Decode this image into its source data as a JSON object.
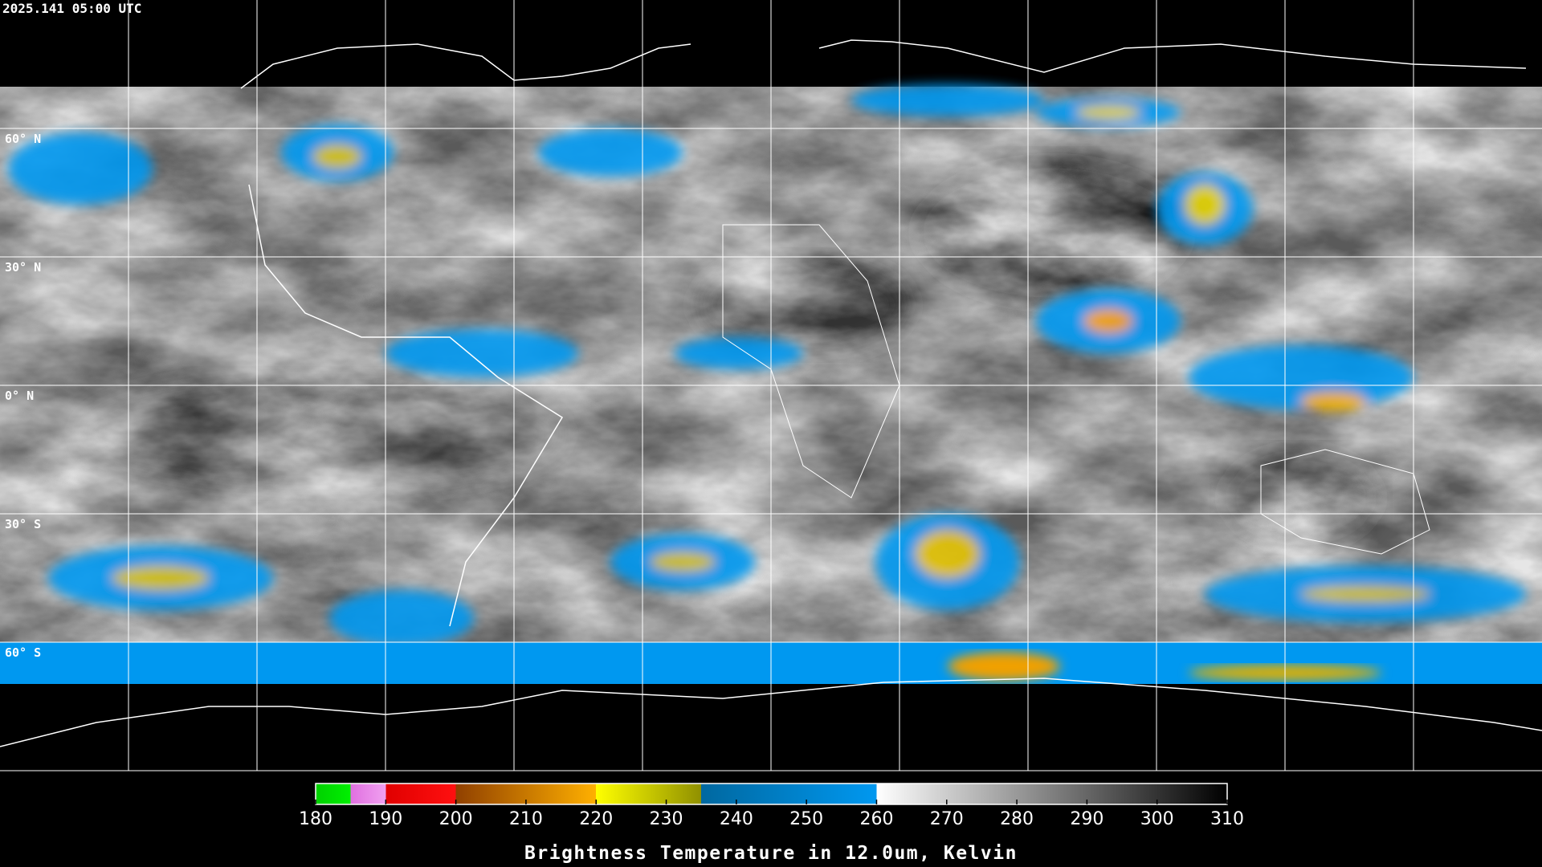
{
  "header": {
    "timestamp": "2025.141 05:00 UTC"
  },
  "map": {
    "latitude_labels": [
      "60° N",
      "30° N",
      "0° N",
      "30° S",
      "60° S"
    ]
  },
  "colorbar": {
    "title": "Brightness Temperature in 12.0um, Kelvin",
    "lim": [
      180,
      310
    ],
    "ticks": [
      180,
      190,
      200,
      210,
      220,
      230,
      240,
      250,
      260,
      270,
      280,
      290,
      300,
      310
    ],
    "stops": [
      {
        "value": 180,
        "color": "#00d000"
      },
      {
        "value": 185,
        "color": "#00f000"
      },
      {
        "value": 185,
        "color": "#e070e0"
      },
      {
        "value": 190,
        "color": "#f0a0f0"
      },
      {
        "value": 190,
        "color": "#e00000"
      },
      {
        "value": 200,
        "color": "#ff1010"
      },
      {
        "value": 200,
        "color": "#904000"
      },
      {
        "value": 220,
        "color": "#ffb000"
      },
      {
        "value": 220,
        "color": "#ffff00"
      },
      {
        "value": 235,
        "color": "#909000"
      },
      {
        "value": 235,
        "color": "#0068a0"
      },
      {
        "value": 260,
        "color": "#0098f0"
      },
      {
        "value": 260,
        "color": "#ffffff"
      },
      {
        "value": 310,
        "color": "#000000"
      }
    ]
  }
}
